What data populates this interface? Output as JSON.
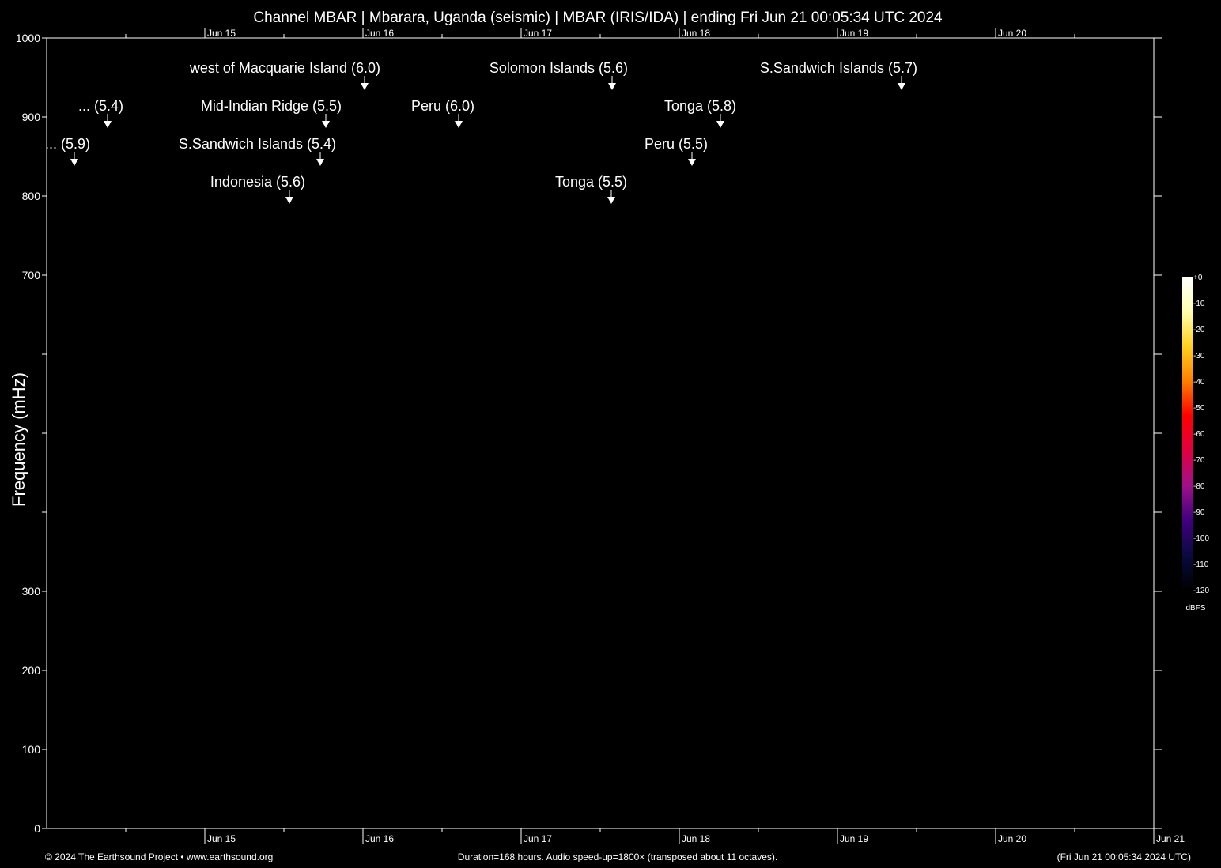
{
  "chart_data": {
    "type": "heatmap",
    "title": "Channel MBAR | Mbarara, Uganda (seismic) | MBAR (IRIS/IDA) | ending Fri Jun 21 00:05:34 UTC 2024",
    "ylabel": "Frequency (mHz)",
    "ylim": [
      0,
      1000
    ],
    "y_ticks": [
      0,
      100,
      200,
      300,
      400,
      500,
      600,
      700,
      800,
      900,
      1000
    ],
    "y_tick_labels": [
      "0",
      "100",
      "200",
      "300",
      "",
      "",
      "",
      "700",
      "800",
      "900",
      "1000"
    ],
    "x_range_days": [
      0,
      7
    ],
    "x_date_ticks": [
      {
        "day": 1,
        "label": "Jun 15"
      },
      {
        "day": 2,
        "label": "Jun 16"
      },
      {
        "day": 3,
        "label": "Jun 17"
      },
      {
        "day": 4,
        "label": "Jun 18"
      },
      {
        "day": 5,
        "label": "Jun 19"
      },
      {
        "day": 6,
        "label": "Jun 20"
      },
      {
        "day": 7,
        "label": "Jun 21"
      }
    ],
    "events": [
      {
        "label": "west of Macquarie Island (6.0)",
        "day": 2.01,
        "row": 0
      },
      {
        "label": "Solomon Islands (5.6)",
        "day": 3.575,
        "row": 0
      },
      {
        "label": "S.Sandwich Islands (5.7)",
        "day": 5.405,
        "row": 0
      },
      {
        "label": "... (5.4)",
        "day": 0.385,
        "row": 1
      },
      {
        "label": "Mid-Indian Ridge (5.5)",
        "day": 1.765,
        "row": 1
      },
      {
        "label": "Peru (6.0)",
        "day": 2.605,
        "row": 1
      },
      {
        "label": "Tonga (5.8)",
        "day": 4.26,
        "row": 1
      },
      {
        "label": "... (5.9)",
        "day": 0.175,
        "row": 2
      },
      {
        "label": "S.Sandwich Islands (5.4)",
        "day": 1.73,
        "row": 2
      },
      {
        "label": "Peru (5.5)",
        "day": 4.08,
        "row": 2
      },
      {
        "label": "Indonesia (5.6)",
        "day": 1.535,
        "row": 3
      },
      {
        "label": "Tonga (5.5)",
        "day": 3.57,
        "row": 3
      }
    ],
    "colorbar": {
      "unit": "dBFS",
      "ticks": [
        "+0",
        "-10",
        "-20",
        "-30",
        "-40",
        "-50",
        "-60",
        "-70",
        "-80",
        "-90",
        "-100",
        "-110",
        "-120"
      ],
      "colors": [
        "#000000",
        "#0a0a40",
        "#400080",
        "#a0108a",
        "#e00040",
        "#ff0000",
        "#ff8000",
        "#ffd020",
        "#ffffb0",
        "#ffffff"
      ]
    }
  },
  "footer": {
    "left": "© 2024 The Earthsound Project • www.earthsound.org",
    "center": "Duration=168 hours. Audio speed-up=1800× (transposed about 11 octaves).",
    "right": "(Fri Jun 21 00:05:34 2024 UTC)"
  }
}
